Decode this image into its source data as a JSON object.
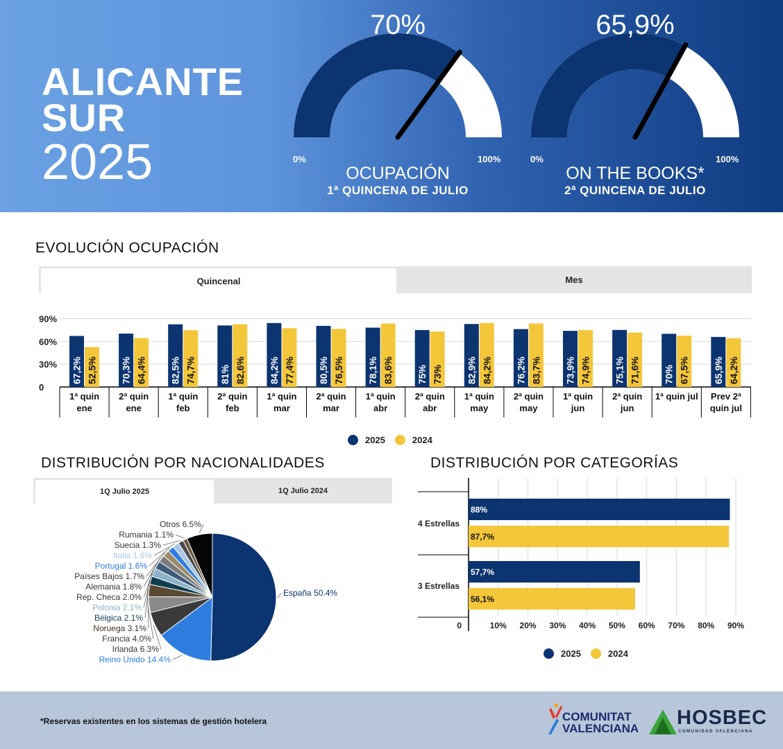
{
  "header": {
    "title_line1": "ALICANTE",
    "title_line2": "SUR",
    "year": "2025",
    "gauges": [
      {
        "value_label": "70%",
        "value": 70,
        "min_label": "0%",
        "max_label": "100%",
        "label": "OCUPACIÓN",
        "sublabel": "1ª QUINCENA DE JULIO"
      },
      {
        "value_label": "65,9%",
        "value": 65.9,
        "min_label": "0%",
        "max_label": "100%",
        "label": "ON THE BOOKS*",
        "sublabel": "2ª QUINCENA DE JULIO"
      }
    ]
  },
  "evolucion": {
    "title": "EVOLUCIÓN OCUPACIÓN",
    "tabs": [
      {
        "label": "Quincenal",
        "active": true
      },
      {
        "label": "Mes",
        "active": false
      }
    ],
    "legend": [
      "2025",
      "2024"
    ]
  },
  "nacionalidades": {
    "title": "DISTRIBUCIÓN POR NACIONALIDADES",
    "tabs": [
      {
        "label": "1Q Julio 2025",
        "active": true
      },
      {
        "label": "1Q Julio 2024",
        "active": false
      }
    ]
  },
  "categorias": {
    "title": "DISTRIBUCIÓN POR CATEGORÍAS",
    "legend": [
      "2025",
      "2024"
    ]
  },
  "footer": {
    "note": "*Reservas existentes en los sistemas de gestión hotelera",
    "logo1_line1": "COMUNITAT",
    "logo1_line2": "VALENCIANA",
    "logo2": "HOSBEC",
    "logo2_sub": "COMUNIDAD VALENCIANA"
  },
  "colors": {
    "series_2025": "#0b3470",
    "series_2024": "#f4c63a"
  },
  "chart_data": [
    {
      "type": "bar",
      "title": "EVOLUCIÓN OCUPACIÓN",
      "categories": [
        [
          "1ª quin",
          "ene"
        ],
        [
          "2ª quin",
          "ene"
        ],
        [
          "1ª quin",
          "feb"
        ],
        [
          "2ª quin",
          "feb"
        ],
        [
          "1ª quin",
          "mar"
        ],
        [
          "2ª quin",
          "mar"
        ],
        [
          "1ª quin",
          "abr"
        ],
        [
          "2ª quin",
          "abr"
        ],
        [
          "1ª quin",
          "may"
        ],
        [
          "2ª quin",
          "may"
        ],
        [
          "1ª quin",
          "jun"
        ],
        [
          "2ª quin",
          "jun"
        ],
        [
          "1ª quin jul"
        ],
        [
          "Prev 2ª",
          "quin jul"
        ]
      ],
      "series": [
        {
          "name": "2025",
          "values": [
            67.2,
            70.3,
            82.5,
            81,
            84.2,
            80.5,
            78.1,
            75,
            82.9,
            76.2,
            73.9,
            75.1,
            70,
            65.9
          ],
          "labels": [
            "67,2%",
            "70,3%",
            "82,5%",
            "81%",
            "84,2%",
            "80,5%",
            "78,1%",
            "75%",
            "82,9%",
            "76,2%",
            "73,9%",
            "75,1%",
            "70%",
            "65,9%"
          ]
        },
        {
          "name": "2024",
          "values": [
            52.5,
            64.4,
            74.7,
            82.6,
            77.4,
            76.5,
            83.6,
            73,
            84.2,
            83.7,
            74.9,
            71.6,
            67.5,
            64.2
          ],
          "labels": [
            "52,5%",
            "64,4%",
            "74,7%",
            "82,6%",
            "77,4%",
            "76,5%",
            "83,6%",
            "73%",
            "84,2%",
            "83,7%",
            "74,9%",
            "71,6%",
            "67,5%",
            "64,2%"
          ]
        }
      ],
      "yticks": [
        "0",
        "30%",
        "60%",
        "90%"
      ],
      "ytick_values": [
        0,
        30,
        60,
        90
      ],
      "ylim": [
        0,
        100
      ],
      "legend": "bottom-center"
    },
    {
      "type": "pie",
      "title": "DISTRIBUCIÓN POR NACIONALIDADES",
      "slices": [
        {
          "label": "España",
          "display": "España 50.4%",
          "value": 50.4,
          "color": "#0b3470"
        },
        {
          "label": "Reino Unido",
          "display": "Reino Unido 14.4%",
          "value": 14.4,
          "color": "#2d7ddf"
        },
        {
          "label": "Irlanda",
          "display": "Irlanda 6.3%",
          "value": 6.3,
          "color": "#3a3a3a"
        },
        {
          "label": "Francia",
          "display": "Francia 4.0%",
          "value": 4.0,
          "color": "#8a8a8a"
        },
        {
          "label": "Noruega",
          "display": "Noruega 3.1%",
          "value": 3.1,
          "color": "#5b4a33"
        },
        {
          "label": "Bélgica",
          "display": "Bélgica 2.1%",
          "value": 2.1,
          "color": "#0f3f4f"
        },
        {
          "label": "Polonia",
          "display": "Polonia 2.1%",
          "value": 2.1,
          "color": "#8db3c8"
        },
        {
          "label": "Rep. Checa",
          "display": "Rep. Checa 2.0%",
          "value": 2.0,
          "color": "#3c5a7a"
        },
        {
          "label": "Alemania",
          "display": "Alemania 1.8%",
          "value": 1.8,
          "color": "#7a7a7a"
        },
        {
          "label": "Países Bajos",
          "display": "Países Bajos 1.7%",
          "value": 1.7,
          "color": "#9a8a6a"
        },
        {
          "label": "Portugal",
          "display": "Portugal 1.6%",
          "value": 1.6,
          "color": "#2d7ddf"
        },
        {
          "label": "Italia",
          "display": "Italia 1.6%",
          "value": 1.6,
          "color": "#a9c7e4"
        },
        {
          "label": "Suecia",
          "display": "Suecia 1.3%",
          "value": 1.3,
          "color": "#4a4a4a"
        },
        {
          "label": "Rumania",
          "display": "Rumania 1.1%",
          "value": 1.1,
          "color": "#6b5a44"
        },
        {
          "label": "Otros",
          "display": "Otros 6.5%",
          "value": 6.5,
          "color": "#050505"
        }
      ]
    },
    {
      "type": "bar",
      "orientation": "horizontal",
      "title": "DISTRIBUCIÓN POR CATEGORÍAS",
      "categories": [
        "4 Estrellas",
        "3 Estrellas"
      ],
      "series": [
        {
          "name": "2025",
          "values": [
            88,
            57.7
          ],
          "labels": [
            "88%",
            "57,7%"
          ]
        },
        {
          "name": "2024",
          "values": [
            87.7,
            56.1
          ],
          "labels": [
            "87,7%",
            "56,1%"
          ]
        }
      ],
      "xticks": [
        "0",
        "10%",
        "20%",
        "30%",
        "40%",
        "50%",
        "60%",
        "70%",
        "80%",
        "90%"
      ],
      "xtick_values": [
        0,
        10,
        20,
        30,
        40,
        50,
        60,
        70,
        80,
        90
      ],
      "xlim": [
        0,
        90
      ],
      "legend": "bottom-center"
    }
  ]
}
